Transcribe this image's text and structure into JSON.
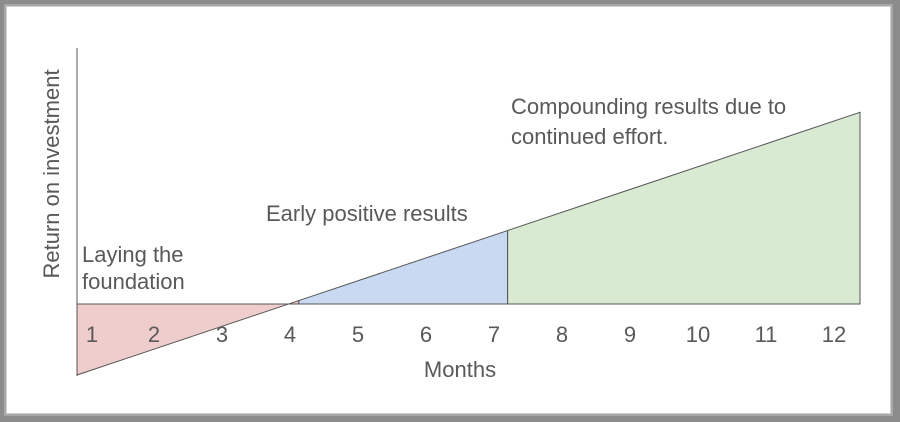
{
  "chart_data": {
    "type": "area",
    "xlabel": "Months",
    "ylabel": "Return on investment",
    "x_ticks": [
      "1",
      "2",
      "3",
      "4",
      "5",
      "6",
      "7",
      "8",
      "9",
      "10",
      "11",
      "12"
    ],
    "baseline": 0,
    "line": {
      "x_start": 0.5,
      "y_start": -1,
      "x_end": 12.5,
      "y_end": 2.7
    },
    "segments": [
      {
        "x_from": 0.5,
        "x_to": 3.9,
        "color": "#efcdcd"
      },
      {
        "x_from": 3.9,
        "x_to": 7.1,
        "color": "#c9d9f2"
      },
      {
        "x_from": 7.1,
        "x_to": 12.5,
        "color": "#d9ead3"
      }
    ],
    "annotations": [
      {
        "lines": [
          "Laying the",
          "foundation"
        ]
      },
      {
        "lines": [
          "Early positive results"
        ]
      },
      {
        "lines": [
          "Compounding results due to",
          "continued effort."
        ]
      }
    ],
    "grid": false,
    "legend": "none"
  }
}
